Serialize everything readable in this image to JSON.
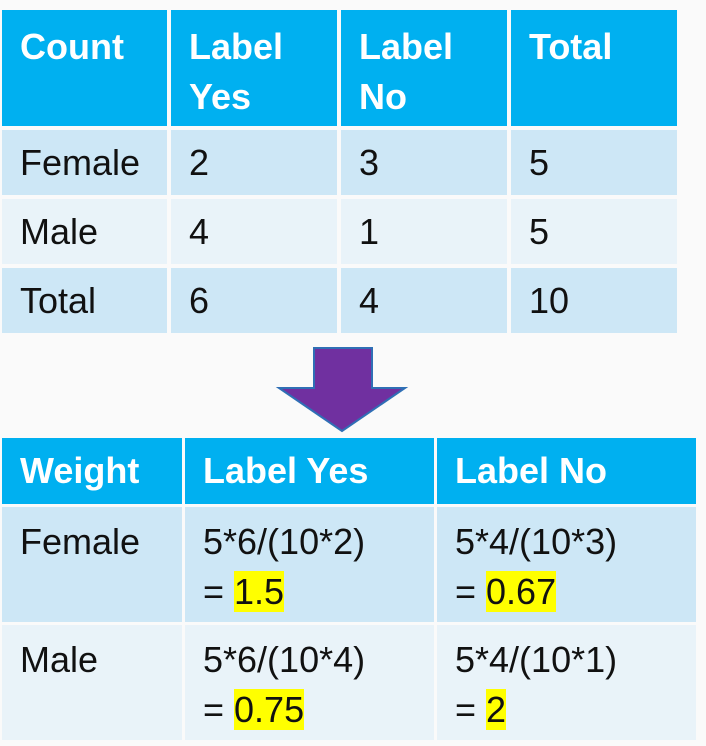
{
  "count_table": {
    "headers": [
      "Count",
      "Label\nYes",
      "Label\nNo",
      "Total"
    ],
    "header_lines": [
      [
        "Count"
      ],
      [
        "Label",
        "Yes"
      ],
      [
        "Label",
        "No"
      ],
      [
        "Total"
      ]
    ],
    "rows": [
      [
        "Female",
        "2",
        "3",
        "5"
      ],
      [
        "Male",
        "4",
        "1",
        "5"
      ],
      [
        "Total",
        "6",
        "4",
        "10"
      ]
    ]
  },
  "weight_table": {
    "headers": [
      "Weight",
      "Label Yes",
      "Label No"
    ],
    "rows": [
      {
        "label": "Female",
        "yes": {
          "formula": "5*6/(10*2)",
          "prefix": "= ",
          "result": "1.5"
        },
        "no": {
          "formula": "5*4/(10*3)",
          "prefix": "= ",
          "result": "0.67"
        }
      },
      {
        "label": "Male",
        "yes": {
          "formula": "5*6/(10*4)",
          "prefix": "= ",
          "result": "0.75"
        },
        "no": {
          "formula": "5*4/(10*1)",
          "prefix": "= ",
          "result": "2"
        }
      }
    ]
  },
  "colors": {
    "header": "#00b0f0",
    "band_a": "#cde7f6",
    "band_b": "#e9f3f9",
    "highlight": "#ffff00",
    "arrow": "#7030a0"
  },
  "icons": {
    "arrow": "down-arrow-icon"
  }
}
